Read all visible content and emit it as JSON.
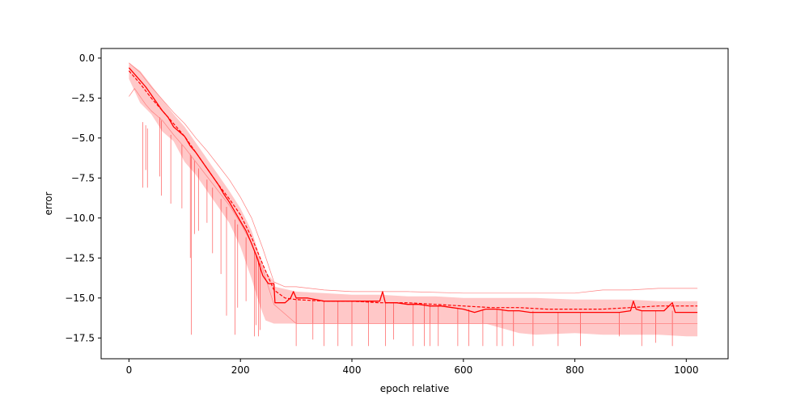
{
  "chart_data": {
    "type": "line",
    "title": "",
    "xlabel": "epoch relative",
    "ylabel": "error",
    "xlim": [
      -50,
      1075
    ],
    "ylim": [
      -18.8,
      0.6
    ],
    "xticks": [
      0,
      200,
      400,
      600,
      800,
      1000
    ],
    "xtick_labels": [
      "0",
      "200",
      "400",
      "600",
      "800",
      "1000"
    ],
    "yticks": [
      0.0,
      -2.5,
      -5.0,
      -7.5,
      -10.0,
      -12.5,
      -15.0,
      -17.5
    ],
    "ytick_labels": [
      "0.0",
      "−2.5",
      "−5.0",
      "−7.5",
      "−10.0",
      "−12.5",
      "−15.0",
      "−17.5"
    ],
    "grid": false,
    "colors": {
      "main": "#ff0000",
      "band": "#ffc8c8",
      "thin": "#ff8080"
    },
    "band": {
      "x": [
        0,
        20,
        40,
        60,
        80,
        100,
        120,
        140,
        160,
        180,
        200,
        220,
        235,
        245,
        260,
        262,
        300,
        350,
        400,
        450,
        500,
        550,
        600,
        640,
        700,
        730,
        800,
        850,
        900,
        950,
        1000,
        1020
      ],
      "upper": [
        -0.3,
        -0.8,
        -1.7,
        -2.6,
        -3.5,
        -4.3,
        -5.3,
        -6.3,
        -7.3,
        -8.3,
        -9.4,
        -10.8,
        -12.4,
        -13.3,
        -14.0,
        -14.3,
        -14.6,
        -14.7,
        -14.8,
        -14.8,
        -14.9,
        -14.9,
        -15.0,
        -15.0,
        -15.0,
        -15.0,
        -15.1,
        -15.1,
        -15.1,
        -15.2,
        -15.2,
        -15.2
      ],
      "lower": [
        -1.3,
        -2.8,
        -3.5,
        -4.6,
        -5.2,
        -6.5,
        -7.3,
        -8.3,
        -9.3,
        -10.3,
        -11.8,
        -13.8,
        -15.5,
        -16.4,
        -16.6,
        -16.6,
        -16.6,
        -16.6,
        -16.6,
        -16.6,
        -16.6,
        -16.6,
        -16.6,
        -16.6,
        -17.2,
        -17.3,
        -17.2,
        -17.3,
        -17.3,
        -17.3,
        -17.4,
        -17.4
      ]
    },
    "series": [
      {
        "style": "solid",
        "x": [
          0,
          10,
          20,
          30,
          40,
          50,
          60,
          70,
          80,
          90,
          100,
          110,
          120,
          130,
          140,
          150,
          160,
          170,
          180,
          190,
          200,
          210,
          220,
          230,
          240,
          250,
          260,
          262,
          270,
          280,
          290,
          295,
          300,
          320,
          350,
          380,
          400,
          420,
          450,
          455,
          460,
          480,
          500,
          520,
          540,
          560,
          580,
          600,
          610,
          620,
          640,
          660,
          680,
          700,
          720,
          740,
          760,
          780,
          800,
          820,
          840,
          860,
          880,
          900,
          905,
          910,
          920,
          940,
          960,
          975,
          980,
          1000,
          1020
        ],
        "y": [
          -0.6,
          -1.0,
          -1.4,
          -1.8,
          -2.3,
          -2.8,
          -3.3,
          -3.7,
          -4.3,
          -4.6,
          -4.9,
          -5.5,
          -5.9,
          -6.4,
          -6.9,
          -7.4,
          -7.9,
          -8.5,
          -9.0,
          -9.6,
          -10.2,
          -10.8,
          -11.6,
          -12.5,
          -13.6,
          -14.1,
          -14.1,
          -15.3,
          -15.3,
          -15.3,
          -15.0,
          -14.6,
          -15.0,
          -15.0,
          -15.2,
          -15.2,
          -15.2,
          -15.2,
          -15.2,
          -14.6,
          -15.3,
          -15.3,
          -15.4,
          -15.4,
          -15.5,
          -15.5,
          -15.6,
          -15.7,
          -15.8,
          -15.9,
          -15.7,
          -15.7,
          -15.8,
          -15.8,
          -15.9,
          -15.9,
          -15.9,
          -15.9,
          -15.9,
          -15.9,
          -15.9,
          -15.9,
          -15.9,
          -15.8,
          -15.2,
          -15.7,
          -15.8,
          -15.8,
          -15.8,
          -15.3,
          -15.9,
          -15.9,
          -15.9
        ]
      },
      {
        "style": "dashed",
        "x": [
          0,
          20,
          40,
          60,
          80,
          100,
          120,
          140,
          160,
          180,
          200,
          220,
          240,
          260,
          280,
          300,
          350,
          400,
          450,
          500,
          550,
          600,
          650,
          700,
          750,
          800,
          850,
          900,
          950,
          1000,
          1020
        ],
        "y": [
          -0.8,
          -1.6,
          -2.5,
          -3.3,
          -4.1,
          -4.9,
          -5.9,
          -6.9,
          -7.9,
          -8.8,
          -9.8,
          -11.2,
          -12.9,
          -14.5,
          -15.0,
          -15.1,
          -15.2,
          -15.2,
          -15.3,
          -15.3,
          -15.4,
          -15.5,
          -15.6,
          -15.6,
          -15.7,
          -15.7,
          -15.7,
          -15.6,
          -15.5,
          -15.5,
          -15.5
        ]
      },
      {
        "style": "thin",
        "x": [
          0,
          20,
          40,
          60,
          80,
          100,
          120,
          140,
          160,
          180,
          200,
          220,
          240,
          260,
          280,
          300,
          350,
          400,
          500,
          600,
          700,
          800,
          850,
          900,
          950,
          1000,
          1020
        ],
        "y": [
          -0.3,
          -0.9,
          -1.8,
          -2.6,
          -3.4,
          -4.1,
          -5.0,
          -5.8,
          -6.7,
          -7.6,
          -8.7,
          -10.0,
          -11.9,
          -14.0,
          -14.3,
          -14.3,
          -14.5,
          -14.6,
          -14.6,
          -14.7,
          -14.7,
          -14.7,
          -14.5,
          -14.5,
          -14.4,
          -14.4,
          -14.4
        ]
      },
      {
        "style": "thin",
        "x": [
          0,
          10,
          20,
          30,
          40,
          50,
          60,
          80,
          100,
          120,
          140,
          160,
          180,
          200,
          220,
          240,
          260,
          300,
          400,
          500,
          600,
          640,
          700,
          800,
          900,
          1000,
          1020
        ],
        "y": [
          -2.4,
          -1.9,
          -2.4,
          -2.9,
          -3.3,
          -3.6,
          -3.9,
          -4.8,
          -5.6,
          -6.5,
          -7.4,
          -8.3,
          -9.2,
          -10.3,
          -11.6,
          -13.2,
          -15.4,
          -16.6,
          -16.6,
          -16.6,
          -16.6,
          -16.6,
          -16.6,
          -16.6,
          -16.6,
          -16.6,
          -16.6
        ]
      }
    ],
    "spikes": {
      "x": [
        25,
        30,
        33,
        55,
        58,
        75,
        95,
        110,
        112,
        118,
        125,
        140,
        150,
        165,
        175,
        190,
        195,
        210,
        225,
        228,
        232,
        235,
        300,
        330,
        350,
        375,
        400,
        430,
        460,
        475,
        510,
        530,
        540,
        555,
        590,
        610,
        635,
        660,
        670,
        690,
        725,
        770,
        810,
        880,
        920,
        945,
        975
      ],
      "y0": [
        -4.0,
        -4.2,
        -4.4,
        -3.7,
        -3.9,
        -4.8,
        -5.4,
        -6.0,
        -6.1,
        -6.4,
        -6.9,
        -7.6,
        -8.1,
        -8.8,
        -9.3,
        -10.1,
        -10.4,
        -11.2,
        -12.1,
        -12.3,
        -12.6,
        -12.8,
        -15.0,
        -15.1,
        -15.2,
        -15.2,
        -15.2,
        -15.2,
        -15.3,
        -15.3,
        -15.3,
        -15.4,
        -15.4,
        -15.5,
        -15.6,
        -15.7,
        -15.7,
        -15.7,
        -15.7,
        -15.8,
        -15.8,
        -15.9,
        -15.9,
        -15.9,
        -15.8,
        -15.8,
        -15.8
      ],
      "y1": [
        -8.1,
        -7.0,
        -8.1,
        -7.4,
        -8.6,
        -9.1,
        -9.4,
        -12.5,
        -17.3,
        -11.0,
        -10.8,
        -10.3,
        -12.2,
        -13.5,
        -16.1,
        -17.3,
        -15.6,
        -15.2,
        -17.4,
        -16.7,
        -17.4,
        -17.0,
        -18.0,
        -17.6,
        -18.0,
        -18.0,
        -18.0,
        -18.0,
        -18.0,
        -17.6,
        -18.0,
        -18.0,
        -18.0,
        -18.0,
        -18.0,
        -18.0,
        -18.0,
        -18.0,
        -18.0,
        -18.0,
        -18.0,
        -18.0,
        -18.0,
        -17.4,
        -18.0,
        -17.8,
        -18.0
      ]
    }
  }
}
